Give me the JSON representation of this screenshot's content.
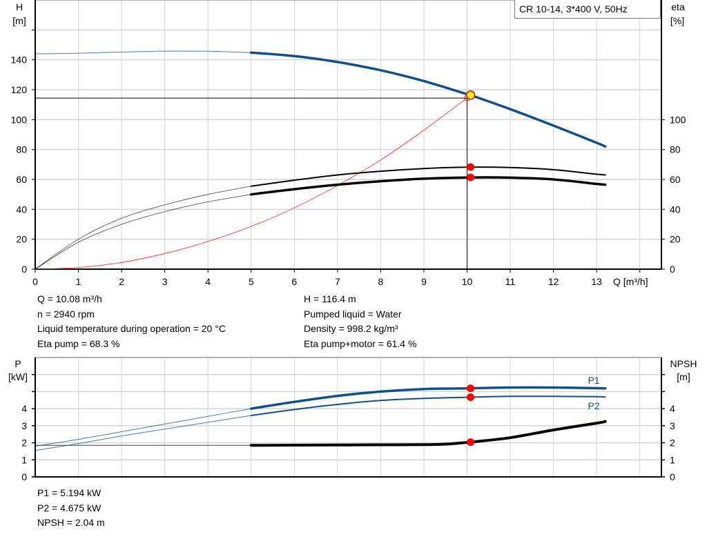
{
  "colors": {
    "head": "#0f4f8a",
    "efficiency": "#000000",
    "system": "#ff2020",
    "power": "#0f4f8a",
    "npsh": "#000000",
    "marker": "#ff0000",
    "duty_point": "#ffff00",
    "grid": "#d4d4d4"
  },
  "legend": {
    "title": "CR 10-14, 3*400 V, 50Hz"
  },
  "chart_data": [
    {
      "type": "line",
      "xlabel": "Q [m³/h]",
      "ylabel": "H [m]",
      "ylabel_top": "H",
      "ylabel_unit": "[m]",
      "y2label_top": "eta",
      "y2label_unit": "[%]",
      "xlim": [
        0,
        14.5
      ],
      "ylim": [
        0,
        180
      ],
      "y2lim": [
        0,
        180
      ],
      "xticks": [
        0,
        1,
        2,
        3,
        4,
        5,
        6,
        7,
        8,
        9,
        10,
        11,
        12,
        13
      ],
      "yticks": [
        0,
        20,
        40,
        60,
        80,
        100,
        120,
        140
      ],
      "y2ticks": [
        0,
        20,
        40,
        60,
        80,
        100
      ],
      "grid": true,
      "series": [
        {
          "key": "head",
          "x": [
            0,
            1,
            2,
            3,
            4,
            5,
            6,
            7,
            8,
            9,
            10,
            10.08,
            11,
            12,
            13,
            13.2
          ],
          "y": [
            144,
            144.4,
            145.2,
            145.8,
            145.7,
            144.8,
            142.5,
            138.5,
            133,
            125.8,
            117,
            116.4,
            107,
            96,
            84.5,
            82
          ],
          "thick_from": 5
        },
        {
          "key": "eta_pump",
          "x": [
            0,
            1,
            2,
            3,
            4,
            5,
            6,
            7,
            8,
            9,
            10,
            11,
            12,
            13,
            13.2
          ],
          "y": [
            0,
            20,
            34,
            43,
            50,
            55.5,
            59.5,
            63,
            65.5,
            67.3,
            68.2,
            68,
            66.5,
            63.5,
            63
          ],
          "thick_from": 5
        },
        {
          "key": "eta_pump_motor",
          "x": [
            0,
            1,
            2,
            3,
            4,
            5,
            6,
            7,
            8,
            9,
            10,
            11,
            12,
            13,
            13.2
          ],
          "y": [
            0,
            18,
            30,
            38.5,
            45,
            50,
            53.5,
            56.5,
            58.8,
            60.5,
            61.3,
            61.2,
            60,
            57,
            56.5
          ],
          "thick_from": 5
        },
        {
          "key": "system",
          "x": [
            0,
            1,
            2,
            3,
            4,
            5,
            6,
            7,
            8,
            9,
            10,
            10.08
          ],
          "y": [
            0,
            1.1,
            4.5,
            10.5,
            18.5,
            28.6,
            41,
            56,
            73,
            93,
            114.5,
            116.4
          ]
        }
      ],
      "duty_point": {
        "Q": 10.08,
        "H": 116.4,
        "eta_pump": 68.3,
        "eta_pump_motor": 61.4
      },
      "crosshair": {
        "Q": 10,
        "H": 114.4
      }
    },
    {
      "type": "line",
      "ylabel_top": "P",
      "ylabel_unit": "[kW]",
      "y2label_top": "NPSH",
      "y2label_unit": "[m]",
      "xlim": [
        0,
        14.5
      ],
      "ylim": [
        0,
        7
      ],
      "y2lim": [
        0,
        7
      ],
      "yticks": [
        0,
        1,
        2,
        3,
        4,
        5,
        6
      ],
      "ytick_labels": [
        "0",
        "1",
        "2",
        "3",
        "4",
        "",
        ""
      ],
      "grid": true,
      "series": [
        {
          "key": "p1",
          "name": "P1",
          "x": [
            0,
            1,
            2,
            3,
            4,
            5,
            6,
            7,
            8,
            9,
            10,
            10.08,
            11,
            12,
            13,
            13.2
          ],
          "y": [
            1.8,
            2.2,
            2.65,
            3.1,
            3.55,
            4.0,
            4.4,
            4.75,
            5.0,
            5.15,
            5.19,
            5.194,
            5.24,
            5.24,
            5.2,
            5.19
          ],
          "thick_from": 5
        },
        {
          "key": "p2",
          "name": "P2",
          "x": [
            0,
            1,
            2,
            3,
            4,
            5,
            6,
            7,
            8,
            9,
            10,
            10.08,
            11,
            12,
            13,
            13.2
          ],
          "y": [
            1.55,
            1.95,
            2.4,
            2.8,
            3.2,
            3.6,
            3.95,
            4.25,
            4.48,
            4.6,
            4.67,
            4.675,
            4.72,
            4.72,
            4.7,
            4.68
          ],
          "thick_from": 5
        },
        {
          "key": "npsh",
          "x": [
            0,
            5,
            6,
            7,
            8,
            9,
            9.5,
            10.08,
            11,
            12,
            13,
            13.2
          ],
          "y": [
            1.85,
            1.85,
            1.86,
            1.87,
            1.88,
            1.89,
            1.92,
            2.04,
            2.3,
            2.75,
            3.15,
            3.25
          ],
          "thick_from": 5
        }
      ],
      "duty_point": {
        "Q": 10.08,
        "P1": 5.194,
        "P2": 4.675,
        "NPSH": 2.04
      }
    }
  ],
  "info": {
    "left": [
      "Q = 10.08 m³/h",
      "n = 2940 rpm",
      "Liquid temperature during operation = 20 °C",
      "Eta pump = 68.3 %"
    ],
    "right": [
      "H = 116.4 m",
      "Pumped liquid = Water",
      "Density = 998.2 kg/m³",
      "Eta pump+motor = 61.4 %"
    ],
    "bottom": [
      "P1 = 5.194 kW",
      "P2 = 4.675 kW",
      "NPSH = 2.04 m"
    ]
  }
}
